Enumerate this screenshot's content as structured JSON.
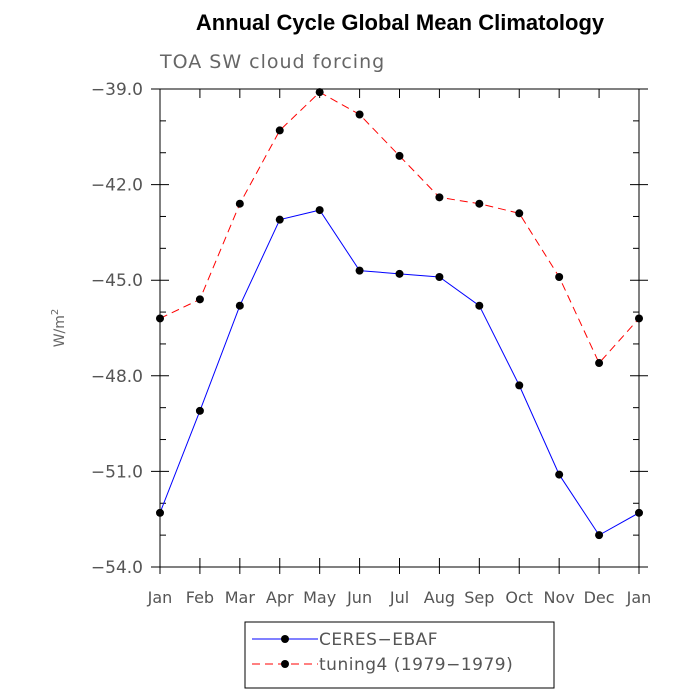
{
  "chart_data": {
    "type": "line",
    "title": "Annual Cycle Global Mean Climatology",
    "subtitle": "TOA SW cloud forcing",
    "xlabel": "",
    "ylabel": "W/m",
    "ylabel_superscript": "2",
    "categories": [
      "Jan",
      "Feb",
      "Mar",
      "Apr",
      "May",
      "Jun",
      "Jul",
      "Aug",
      "Sep",
      "Oct",
      "Nov",
      "Dec",
      "Jan"
    ],
    "ylim": [
      -54.0,
      -39.0
    ],
    "yticks": [
      -54.0,
      -51.0,
      -48.0,
      -45.0,
      -42.0,
      -39.0
    ],
    "ytick_labels": [
      "−54.0",
      "−51.0",
      "−48.0",
      "−45.0",
      "−42.0",
      "−39.0"
    ],
    "series": [
      {
        "name": "CERES−EBAF",
        "color": "#0000ff",
        "dash": "solid",
        "values": [
          -52.3,
          -49.1,
          -45.8,
          -43.1,
          -42.8,
          -44.7,
          -44.8,
          -44.9,
          -45.8,
          -48.3,
          -51.1,
          -53.0,
          -52.3
        ]
      },
      {
        "name": "tuning4 (1979−1979)",
        "color": "#ff0000",
        "dash": "dashed",
        "values": [
          -46.2,
          -45.6,
          -42.6,
          -40.3,
          -39.1,
          -39.8,
          -41.1,
          -42.4,
          -42.6,
          -42.9,
          -44.9,
          -47.6,
          -46.2
        ]
      }
    ],
    "legend_position": "bottom-center"
  }
}
